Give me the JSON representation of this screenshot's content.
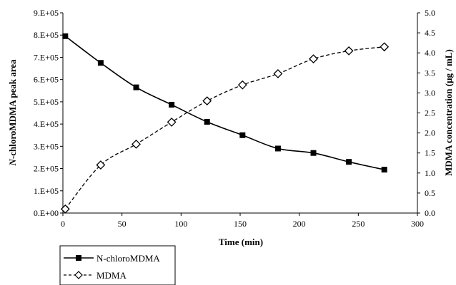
{
  "chart_data": {
    "type": "line",
    "xlabel": "Time (min)",
    "ylabel_left_italic": "N",
    "ylabel_left_rest": "-chloroMDMA peak area",
    "ylabel_right": "MDMA concentration (μg / mL)",
    "x_ticks": [
      "0",
      "50",
      "100",
      "150",
      "200",
      "250",
      "300"
    ],
    "x_range": [
      0,
      300
    ],
    "y_left_ticks": [
      "0.E+00",
      "1.E+05",
      "2.E+05",
      "3.E+05",
      "4.E+05",
      "5.E+05",
      "6.E+05",
      "7.E+05",
      "8.E+05",
      "9.E+05"
    ],
    "y_left_range": [
      0,
      900000
    ],
    "y_right_ticks": [
      "0.0",
      "0.5",
      "1.0",
      "1.5",
      "2.0",
      "2.5",
      "3.0",
      "3.5",
      "4.0",
      "4.5",
      "5.0"
    ],
    "y_right_range": [
      0,
      5
    ],
    "grid": false,
    "legend_position": "bottom-left",
    "series": [
      {
        "name": "N-chloroMDMA",
        "axis": "left",
        "marker": "filled-square",
        "line_style": "solid",
        "color": "#000000",
        "x": [
          2,
          32,
          62,
          92,
          122,
          152,
          182,
          212,
          242,
          272
        ],
        "values": [
          795000,
          675000,
          565000,
          487000,
          410000,
          350000,
          290000,
          270000,
          230000,
          195000
        ]
      },
      {
        "name": "MDMA",
        "axis": "right",
        "marker": "open-diamond",
        "line_style": "dashed",
        "color": "#000000",
        "x": [
          2,
          32,
          62,
          92,
          122,
          152,
          182,
          212,
          242,
          272
        ],
        "values": [
          0.1,
          1.2,
          1.72,
          2.27,
          2.8,
          3.2,
          3.48,
          3.85,
          4.05,
          4.15
        ]
      }
    ]
  }
}
